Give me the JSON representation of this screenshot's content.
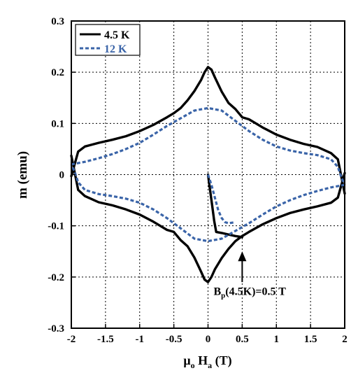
{
  "chart_data": {
    "type": "line",
    "title": "",
    "xlabel": {
      "main": "μ",
      "sub1": "o",
      "main2": " H",
      "sub2": "a",
      "tail": " (T)"
    },
    "ylabel": "m (emu)",
    "xlim": [
      -2,
      2
    ],
    "ylim": [
      -0.3,
      0.3
    ],
    "xticks": [
      "-2",
      "-1.5",
      "-1",
      "-0.5",
      "0",
      "0.5",
      "1",
      "1.5",
      "2"
    ],
    "yticks": [
      "-0.3",
      "-0.2",
      "-0.1",
      "0",
      "0.1",
      "0.2",
      "0.3"
    ],
    "grid": "dotted",
    "legend_position": "top-left",
    "annotation": {
      "text_main": "B",
      "text_sub": "p",
      "text_tail": "(4.5K)=0.5 T",
      "arrow_x": 0.5,
      "arrow_tip_y": -0.15,
      "arrow_tail_y": -0.21,
      "label_x": 0.0,
      "label_y": -0.235
    },
    "series": [
      {
        "name": "4.5 K",
        "color": "#000000",
        "style": "solid",
        "branches": [
          {
            "x": [
              -2.0,
              -1.9,
              -1.8,
              -1.6,
              -1.4,
              -1.2,
              -1.0,
              -0.8,
              -0.6,
              -0.5,
              -0.4,
              -0.3,
              -0.2,
              -0.1,
              -0.05,
              0.0,
              0.05,
              0.1,
              0.2,
              0.3,
              0.4,
              0.5,
              0.6,
              0.7,
              0.8,
              1.0,
              1.2,
              1.4,
              1.6,
              1.8,
              1.9,
              2.0
            ],
            "y": [
              -0.003,
              0.045,
              0.055,
              0.062,
              0.068,
              0.075,
              0.085,
              0.097,
              0.112,
              0.12,
              0.13,
              0.145,
              0.163,
              0.185,
              0.2,
              0.21,
              0.205,
              0.19,
              0.162,
              0.14,
              0.128,
              0.112,
              0.108,
              0.1,
              0.092,
              0.078,
              0.068,
              0.06,
              0.054,
              0.042,
              0.03,
              -0.037
            ]
          },
          {
            "x": [
              2.0,
              1.9,
              1.8,
              1.6,
              1.4,
              1.2,
              1.0,
              0.8,
              0.6,
              0.5,
              0.4,
              0.3,
              0.2,
              0.1,
              0.05,
              0.0,
              -0.05,
              -0.1,
              -0.2,
              -0.3,
              -0.4,
              -0.5,
              -0.6,
              -0.7,
              -0.8,
              -1.0,
              -1.2,
              -1.4,
              -1.6,
              -1.8,
              -1.9,
              -2.0
            ],
            "y": [
              0.003,
              -0.045,
              -0.055,
              -0.062,
              -0.068,
              -0.075,
              -0.085,
              -0.097,
              -0.112,
              -0.12,
              -0.13,
              -0.145,
              -0.163,
              -0.185,
              -0.2,
              -0.21,
              -0.205,
              -0.19,
              -0.162,
              -0.14,
              -0.128,
              -0.112,
              -0.108,
              -0.1,
              -0.092,
              -0.078,
              -0.068,
              -0.06,
              -0.054,
              -0.042,
              -0.03,
              0.037
            ]
          },
          {
            "x": [
              0.0,
              0.03,
              0.06,
              0.09,
              0.12,
              0.2,
              0.3,
              0.4,
              0.5
            ],
            "y": [
              0.0,
              -0.03,
              -0.06,
              -0.09,
              -0.112,
              -0.114,
              -0.117,
              -0.12,
              -0.122
            ]
          }
        ]
      },
      {
        "name": "12 K",
        "color": "#3a64a8",
        "style": "dashed",
        "branches": [
          {
            "x": [
              -2.0,
              -1.8,
              -1.6,
              -1.4,
              -1.2,
              -1.0,
              -0.8,
              -0.6,
              -0.4,
              -0.2,
              0.0,
              0.2,
              0.4,
              0.5,
              0.6,
              0.8,
              1.0,
              1.2,
              1.4,
              1.6,
              1.8,
              1.9,
              1.95,
              2.0
            ],
            "y": [
              0.02,
              0.025,
              0.032,
              0.04,
              0.05,
              0.062,
              0.078,
              0.095,
              0.11,
              0.125,
              0.13,
              0.125,
              0.105,
              0.095,
              0.085,
              0.068,
              0.055,
              0.047,
              0.042,
              0.038,
              0.03,
              0.015,
              -0.005,
              -0.02
            ]
          },
          {
            "x": [
              2.0,
              1.8,
              1.6,
              1.4,
              1.2,
              1.0,
              0.8,
              0.6,
              0.4,
              0.2,
              0.0,
              -0.2,
              -0.4,
              -0.5,
              -0.6,
              -0.8,
              -1.0,
              -1.2,
              -1.4,
              -1.6,
              -1.8,
              -1.9,
              -1.95,
              -2.0
            ],
            "y": [
              -0.02,
              -0.025,
              -0.032,
              -0.04,
              -0.05,
              -0.062,
              -0.078,
              -0.095,
              -0.11,
              -0.125,
              -0.13,
              -0.125,
              -0.105,
              -0.095,
              -0.085,
              -0.068,
              -0.055,
              -0.047,
              -0.042,
              -0.038,
              -0.03,
              -0.015,
              0.005,
              0.02
            ]
          },
          {
            "x": [
              0.0,
              0.05,
              0.1,
              0.15,
              0.2,
              0.25,
              0.3,
              0.4
            ],
            "y": [
              0.0,
              -0.02,
              -0.045,
              -0.07,
              -0.085,
              -0.093,
              -0.095,
              -0.093
            ]
          }
        ]
      }
    ]
  }
}
